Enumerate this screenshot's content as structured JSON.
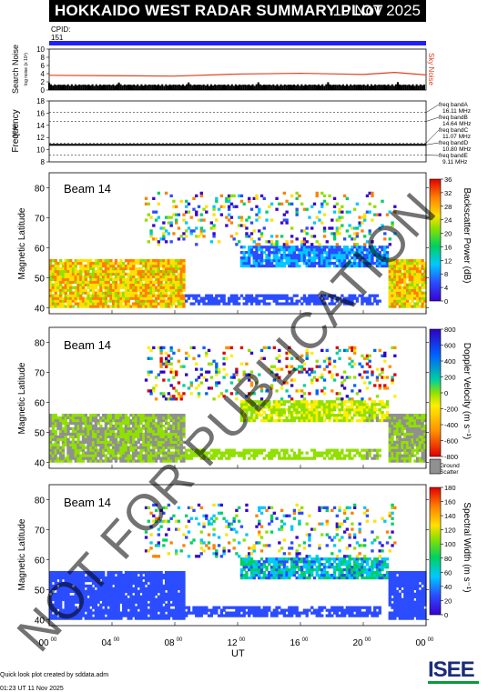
{
  "header": {
    "title": "HOKKAIDO WEST RADAR SUMMARY PLOT",
    "date": "10 Nov 2025"
  },
  "cpid": {
    "label": "CPID:",
    "value": "151"
  },
  "noise_panel": {
    "ylabel": "Search Noise",
    "ylabel_units": "log noise (x 10²)",
    "right_label": "Sky Noise",
    "ticks": [
      "0",
      "2",
      "4",
      "6",
      "8",
      "10"
    ]
  },
  "freq_panel": {
    "ylabel": "Frequency",
    "ylabel_units": "(MHz)",
    "ticks": [
      "8",
      "10",
      "12",
      "14",
      "16",
      "18"
    ],
    "bands": [
      {
        "name": "freq bandA",
        "value": "16.11 MHz"
      },
      {
        "name": "freq bandB",
        "value": "14.64 MHz"
      },
      {
        "name": "freq bandC",
        "value": "11.07 MHz"
      },
      {
        "name": "freq bandD",
        "value": "10.80 MHz"
      },
      {
        "name": "freq bandE",
        "value": "9.11 MHz"
      }
    ]
  },
  "panels": [
    {
      "id": "power",
      "beam": "Beam 14",
      "ylabel": "Magnetic Latitude",
      "cbar_label": "Backscatter Power (dB)",
      "cbar_ticks": [
        "0",
        "4",
        "8",
        "12",
        "16",
        "20",
        "24",
        "28",
        "32",
        "36"
      ]
    },
    {
      "id": "velocity",
      "beam": "Beam 14",
      "ylabel": "Magnetic Latitude",
      "cbar_label": "Doppler Velocity (m s⁻¹)",
      "cbar_ticks": [
        "-800",
        "-600",
        "-400",
        "-200",
        "0",
        "200",
        "400",
        "600",
        "800"
      ],
      "ground_label": "Ground",
      "scatter_label": "Scatter"
    },
    {
      "id": "width",
      "beam": "Beam 14",
      "ylabel": "Magnetic Latitude",
      "cbar_label": "Spectral Width (m s⁻¹)",
      "cbar_ticks": [
        "0",
        "20",
        "40",
        "60",
        "80",
        "100",
        "120",
        "140",
        "160",
        "180"
      ]
    }
  ],
  "lat_ticks": [
    "40",
    "50",
    "60",
    "70",
    "80"
  ],
  "xaxis": {
    "label": "UT",
    "ticks": [
      "00",
      "04",
      "08",
      "12",
      "16",
      "20",
      "00"
    ],
    "tick_sup": "00"
  },
  "footer": {
    "credit": "Quick look plot created by sddata.adm",
    "timestamp": "01:23 UT 11 Nov 2025",
    "logo": "ISEE"
  },
  "watermark": "NOT FOR PUBLICATION",
  "colors": {
    "cpid_bar": "#2020ff",
    "sky_noise": "#e04020",
    "ground_scatter": "#909090"
  },
  "chart_data": [
    {
      "type": "line",
      "title": "",
      "ylabel": "Search Noise",
      "ylim": [
        0,
        10
      ],
      "x": [
        0,
        4,
        8,
        12,
        16,
        20,
        22,
        24
      ],
      "series": [
        {
          "name": "Sky Noise",
          "values": [
            3.6,
            3.5,
            3.4,
            3.9,
            4.1,
            3.8,
            4.3,
            3.7
          ]
        }
      ]
    },
    {
      "type": "line",
      "ylabel": "Frequency",
      "ylim": [
        8,
        18
      ],
      "x": [
        0,
        24
      ],
      "series": [
        {
          "name": "Operating Frequency",
          "values": [
            10.8,
            10.8
          ]
        }
      ]
    },
    {
      "type": "heatmap",
      "ylabel": "Magnetic Latitude",
      "xlabel": "UT",
      "xlim": [
        0,
        24
      ],
      "ylim": [
        38,
        85
      ],
      "colorbar": "Backscatter Power (dB)",
      "clim": [
        0,
        36
      ]
    },
    {
      "type": "heatmap",
      "ylabel": "Magnetic Latitude",
      "xlabel": "UT",
      "xlim": [
        0,
        24
      ],
      "ylim": [
        38,
        85
      ],
      "colorbar": "Doppler Velocity (m s⁻¹)",
      "clim": [
        -800,
        800
      ]
    },
    {
      "type": "heatmap",
      "ylabel": "Magnetic Latitude",
      "xlabel": "UT",
      "xlim": [
        0,
        24
      ],
      "ylim": [
        38,
        85
      ],
      "colorbar": "Spectral Width (m s⁻¹)",
      "clim": [
        0,
        180
      ]
    }
  ]
}
